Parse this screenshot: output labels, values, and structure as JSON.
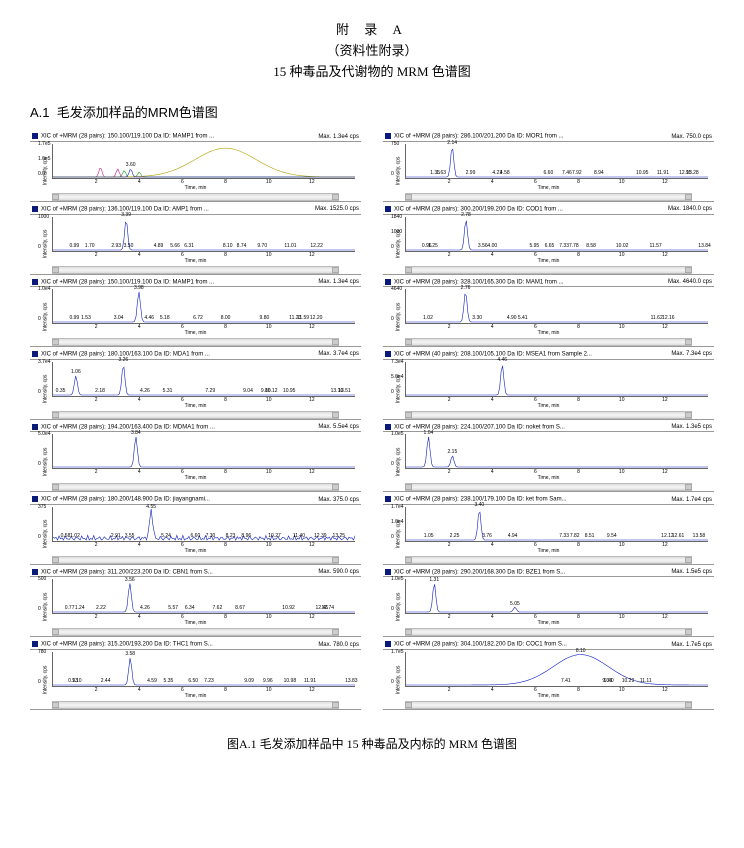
{
  "header": {
    "title": "附  录  A",
    "subtitle": "（资料性附录）",
    "desc": "15 种毒品及代谢物的 MRM 色谱图"
  },
  "section": {
    "number": "A.1",
    "title": "毛发添加样品的MRM色谱图"
  },
  "caption": "图A.1  毛发添加样品中 15 种毒品及内标的 MRM 色谱图",
  "axis": {
    "ylabel": "Intensity, cps",
    "xlabel": "Time, min",
    "xmin": 0,
    "xmax": 14,
    "xticks": [
      2,
      4,
      6,
      8,
      10,
      12
    ]
  },
  "colors": {
    "trace": "#1020c0",
    "extra1": "#c81e8a",
    "extra2": "#18a018",
    "extra3": "#b0a000"
  },
  "left_panels": [
    {
      "title": "XIC of +MRM (28 pairs): 150.100/119.100 Da ID: MAMP1 from ...",
      "max": "Max. 1.3e4 cps",
      "yticks": [
        "1.7e5",
        "1.0e5",
        "0.0"
      ],
      "multi": true,
      "peaks": [
        {
          "t": 3.6,
          "h": 0.25,
          "lbl": "3.60",
          "c": "#c81e8a"
        },
        {
          "t": 8.0,
          "h": 0.9,
          "w": 50,
          "lbl": "",
          "c": "#b0a000"
        }
      ],
      "labels": []
    },
    {
      "title": "XIC of +MRM (28 pairs): 136.100/119.100 Da ID: AMP1 from ...",
      "max": "Max. 1525.0 cps",
      "yticks": [
        "1000",
        "0"
      ],
      "peaks": [
        {
          "t": 3.39,
          "h": 0.95,
          "lbl": "3.39"
        }
      ],
      "labels": [
        "0.99",
        "1.70",
        "2.93",
        "3.50",
        "4.89",
        "6.31",
        "5.66",
        "8.10",
        "8.74",
        "9.70",
        "11.01",
        "12.22"
      ]
    },
    {
      "title": "XIC of +MRM (28 pairs): 150.100/119.100 Da ID: MAMP1 from ...",
      "max": "Max. 1.3e4 cps",
      "yticks": [
        "1.0e4",
        "0"
      ],
      "peaks": [
        {
          "t": 3.98,
          "h": 0.95,
          "lbl": "3.98"
        }
      ],
      "labels": [
        "0.99",
        "1.53",
        "3.04",
        "4.46",
        "5.18",
        "6.72",
        "8.00",
        "9.80",
        "11.23",
        "11.59",
        "12.20"
      ]
    },
    {
      "title": "XIC of +MRM (28 pairs): 180.100/163.100 Da ID: MDA1 from ...",
      "max": "Max. 3.7e4 cps",
      "yticks": [
        "3.7e4",
        "0"
      ],
      "peaks": [
        {
          "t": 1.06,
          "h": 0.6,
          "lbl": "1.06"
        },
        {
          "t": 3.26,
          "h": 0.95,
          "lbl": "3.26"
        }
      ],
      "labels": [
        "0.35",
        "2.18",
        "4.26",
        "5.31",
        "7.29",
        "9.04",
        "10.12",
        "9.86",
        "10.95",
        "13.16",
        "13.51"
      ]
    },
    {
      "title": "XIC of +MRM (28 pairs): 194.200/163.400 Da ID: MDMA1 from ...",
      "max": "Max. 5.5e4 cps",
      "yticks": [
        "5.0e4",
        "0"
      ],
      "peaks": [
        {
          "t": 3.84,
          "h": 0.95,
          "lbl": "3.84"
        }
      ],
      "labels": []
    },
    {
      "title": "XIC of +MRM (28 pairs): 180.200/148.900 Da ID: jiayangnami...",
      "max": "Max. 375.0 cps",
      "yticks": [
        "375",
        "0"
      ],
      "noisy": true,
      "peaks": [
        {
          "t": 4.55,
          "h": 0.9,
          "lbl": "4.55"
        }
      ],
      "labels": [
        "0.58",
        "1.02",
        "2.91",
        "3.55",
        "5.24",
        "6.60",
        "7.30",
        "8.23",
        "8.96",
        "10.27",
        "11.40",
        "12.39",
        "13.25"
      ]
    },
    {
      "title": "XIC of +MRM (28 pairs): 311.200/223.200 Da ID: CBN1 from S...",
      "max": "Max. 590.0 cps",
      "yticks": [
        "500",
        "0"
      ],
      "peaks": [
        {
          "t": 3.56,
          "h": 0.9,
          "lbl": "3.56"
        }
      ],
      "labels": [
        "0.77",
        "1.24",
        "2.22",
        "4.26",
        "5.57",
        "6.34",
        "7.62",
        "8.67",
        "10.92",
        "12.46",
        "12.74"
      ]
    },
    {
      "title": "XIC of +MRM (28 pairs): 315.200/193.200 Da ID: THC1 from S...",
      "max": "Max. 780.0 cps",
      "yticks": [
        "780",
        "0"
      ],
      "peaks": [
        {
          "t": 3.58,
          "h": 0.85,
          "lbl": "3.58"
        }
      ],
      "labels": [
        "0.93",
        "1.10",
        "2.44",
        "4.59",
        "5.35",
        "6.50",
        "7.23",
        "9.09",
        "9.96",
        "10.98",
        "11.91",
        "13.83"
      ]
    }
  ],
  "right_panels": [
    {
      "title": "XIC of +MRM (28 pairs): 286.100/201.200 Da ID: MOR1 from ...",
      "max": "Max. 750.0 cps",
      "yticks": [
        "750",
        "0"
      ],
      "peaks": [
        {
          "t": 2.14,
          "h": 0.95,
          "lbl": "2.14"
        }
      ],
      "labels": [
        "1.35",
        "1.63",
        "2.99",
        "4.23",
        "4.58",
        "6.60",
        "7.46",
        "7.92",
        "8.94",
        "10.95",
        "11.91",
        "12.95",
        "13.28"
      ]
    },
    {
      "title": "XIC of +MRM (28 pairs): 300.200/199.200 Da ID: COD1 from ...",
      "max": "Max. 1840.0 cps",
      "yticks": [
        "1840",
        "1000",
        "0"
      ],
      "peaks": [
        {
          "t": 2.78,
          "h": 0.95,
          "lbl": "2.78"
        }
      ],
      "labels": [
        "0.96",
        "1.25",
        "3.56",
        "4.00",
        "6.65",
        "5.95",
        "7.33",
        "7.78",
        "8.58",
        "10.02",
        "11.57",
        "13.84"
      ]
    },
    {
      "title": "XIC of +MRM (28 pairs): 328.100/165.300 Da ID: MAM1 from ...",
      "max": "Max. 4640.0 cps",
      "yticks": [
        "4640",
        "0"
      ],
      "peaks": [
        {
          "t": 2.76,
          "h": 0.95,
          "lbl": "2.76"
        }
      ],
      "labels": [
        "1.02",
        "3.30",
        "4.90",
        "5.41",
        "11.62",
        "12.16"
      ]
    },
    {
      "title": "XIC of +MRM (40 pairs): 208.100/105.100 Da ID: MSEA1 from Sample 2...",
      "max": "Max. 7.3e4 cps",
      "yticks": [
        "7.3e4",
        "5.0e4",
        "0"
      ],
      "peaks": [
        {
          "t": 4.46,
          "h": 0.95,
          "lbl": "4.46"
        }
      ],
      "labels": []
    },
    {
      "title": "XIC of +MRM (28 pairs): 224.100/207.100 Da ID: noket from S...",
      "max": "Max. 1.3e5 cps",
      "yticks": [
        "1.0e5",
        "0"
      ],
      "peaks": [
        {
          "t": 1.04,
          "h": 0.95,
          "lbl": "1.04"
        },
        {
          "t": 2.15,
          "h": 0.35,
          "lbl": "2.15"
        }
      ],
      "labels": []
    },
    {
      "title": "XIC of +MRM (28 pairs): 238.100/179.100 Da ID: ket from Sam...",
      "max": "Max. 1.7e4 cps",
      "yticks": [
        "1.7e4",
        "1.0e4",
        "0"
      ],
      "peaks": [
        {
          "t": 3.4,
          "h": 0.95,
          "lbl": "3.40"
        }
      ],
      "labels": [
        "1.05",
        "2.25",
        "3.76",
        "4.94",
        "7.33",
        "7.82",
        "8.51",
        "9.54",
        "12.12",
        "12.61",
        "13.58"
      ]
    },
    {
      "title": "XIC of +MRM (28 pairs): 290.200/168.300 Da ID: BZE1 from S...",
      "max": "Max. 1.5e5 cps",
      "yticks": [
        "1.0e5",
        "0"
      ],
      "peaks": [
        {
          "t": 1.31,
          "h": 0.9,
          "lbl": "1.31"
        },
        {
          "t": 5.05,
          "h": 0.15,
          "lbl": "5.05"
        }
      ],
      "labels": []
    },
    {
      "title": "XIC of +MRM (28 pairs): 304.100/182.200 Da ID: COC1 from S...",
      "max": "Max. 1.7e5 cps",
      "yticks": [
        "1.7e5",
        "0"
      ],
      "peaks": [
        {
          "t": 8.1,
          "h": 0.95,
          "w": 45,
          "lbl": "8.10"
        }
      ],
      "labels": [
        "7.41",
        "9.40",
        "9.33",
        "10.29",
        "11.11"
      ]
    }
  ]
}
